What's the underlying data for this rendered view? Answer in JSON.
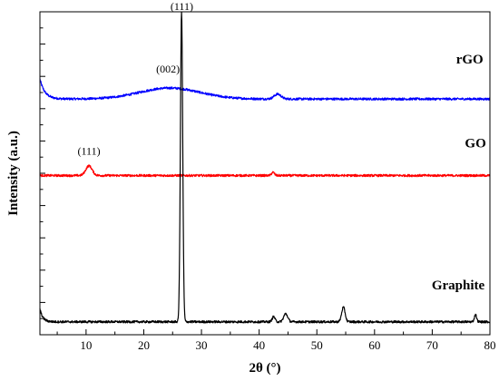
{
  "chart_data": {
    "type": "line",
    "xlabel": "2θ (°)",
    "ylabel": "Intensity (a.u.)",
    "xlim": [
      2,
      80
    ],
    "ylim": [
      0,
      100
    ],
    "x_ticks": [
      10,
      20,
      30,
      40,
      50,
      60,
      70,
      80
    ],
    "y_ticks_labeled": false,
    "grid": false,
    "legend": "none",
    "series": [
      {
        "name": "rGO",
        "color": "#0000ff",
        "baseline": 73,
        "noise": 0.35,
        "features": [
          {
            "type": "exp",
            "amp": 6.2,
            "tau": 0.85
          },
          {
            "type": "gauss",
            "center": 24.5,
            "height": 3.4,
            "width": 5.2
          },
          {
            "type": "gauss",
            "center": 43.2,
            "height": 1.5,
            "width": 0.6
          }
        ]
      },
      {
        "name": "GO",
        "color": "#ff0000",
        "baseline": 49.3,
        "noise": 0.35,
        "features": [
          {
            "type": "gauss",
            "center": 10.5,
            "height": 3.0,
            "width": 0.55
          },
          {
            "type": "gauss",
            "center": 42.4,
            "height": 1.0,
            "width": 0.25
          }
        ]
      },
      {
        "name": "Graphite",
        "color": "#000000",
        "baseline": 4,
        "noise": 0.35,
        "features": [
          {
            "type": "exp",
            "amp": 4.0,
            "tau": 0.5
          },
          {
            "type": "gauss",
            "center": 26.55,
            "height": 96,
            "width": 0.2
          },
          {
            "type": "gauss",
            "center": 42.5,
            "height": 1.6,
            "width": 0.25
          },
          {
            "type": "gauss",
            "center": 44.6,
            "height": 2.5,
            "width": 0.35
          },
          {
            "type": "gauss",
            "center": 54.6,
            "height": 4.5,
            "width": 0.3
          },
          {
            "type": "gauss",
            "center": 77.5,
            "height": 2.2,
            "width": 0.2
          }
        ]
      }
    ],
    "annotations": [
      {
        "text": "(111)",
        "x": 26.6,
        "y": 100.5
      },
      {
        "text": "(002)",
        "x": 24.2,
        "y": 81.2
      },
      {
        "text": "(111)",
        "x": 10.5,
        "y": 55.8
      }
    ],
    "series_labels": [
      {
        "text": "rGO",
        "x": 76.5,
        "y": 84
      },
      {
        "text": "GO",
        "x": 77.5,
        "y": 58
      },
      {
        "text": "Graphite",
        "x": 74.5,
        "y": 14
      }
    ]
  }
}
